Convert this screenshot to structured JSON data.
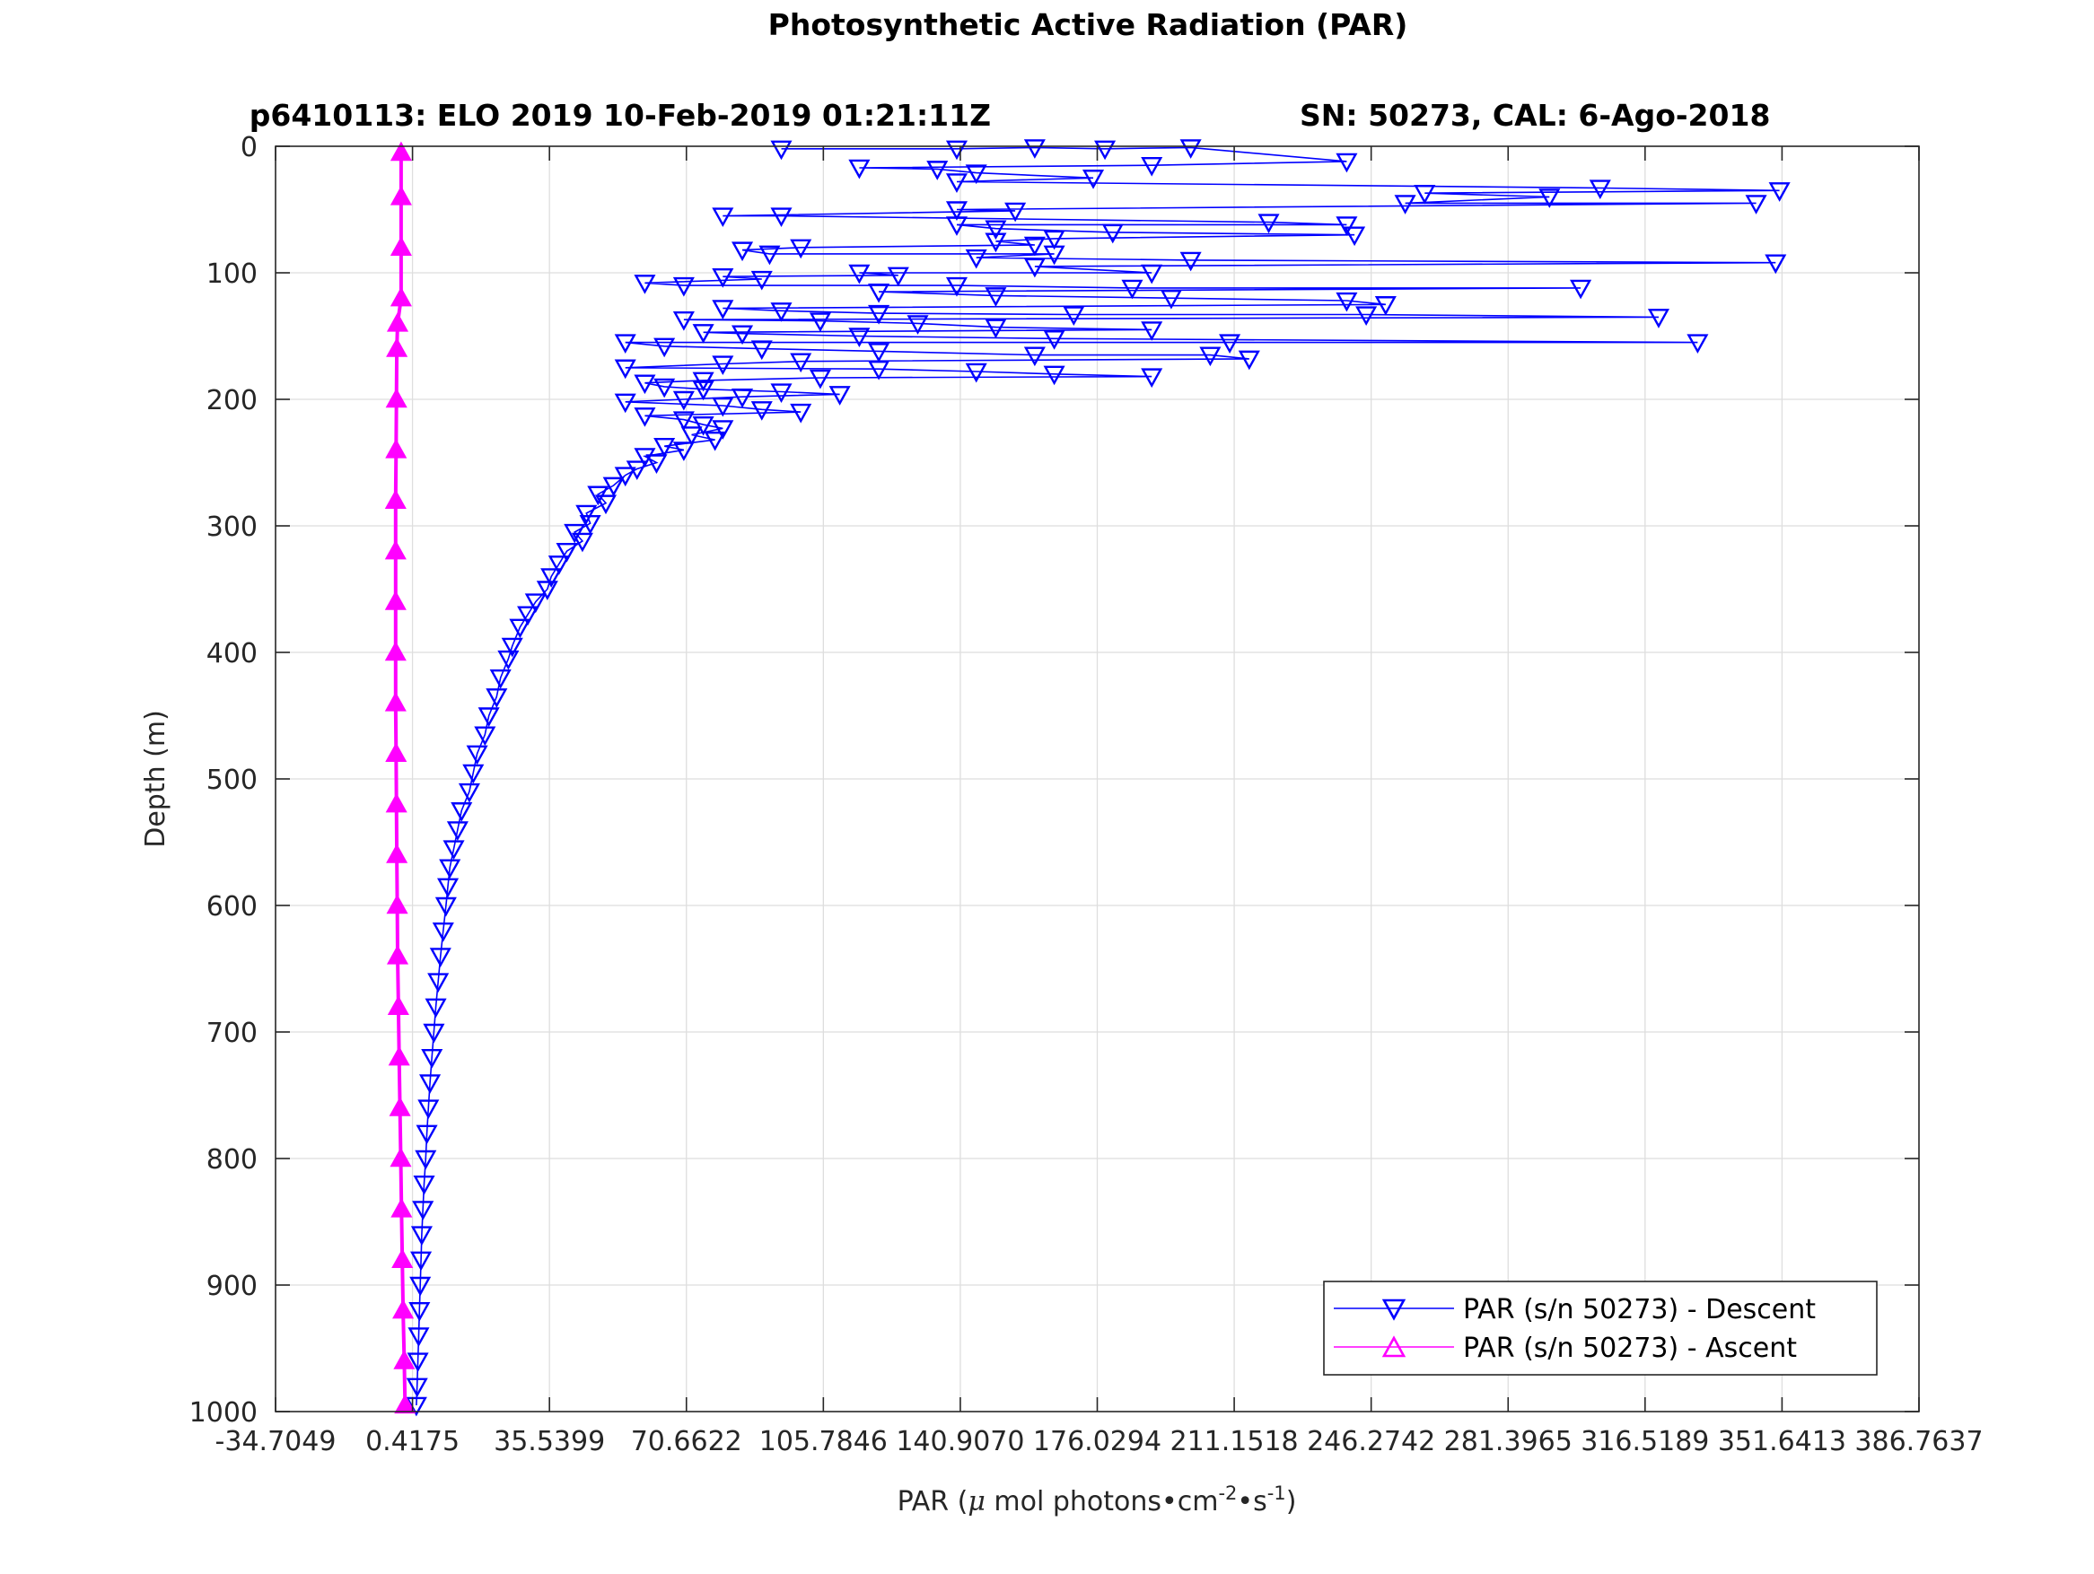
{
  "figure": {
    "title": "Photosynthetic Active Radiation (PAR)",
    "subtitle_left": "p6410113: ELO 2019 10-Feb-2019 01:21:11Z",
    "subtitle_right": "SN: 50273, CAL: 6-Ago-2018"
  },
  "chart_data": {
    "type": "line",
    "title": "Photosynthetic Active Radiation (PAR)",
    "xlabel": "PAR (μ mol photons•cm⁻²•s⁻¹)",
    "xlabel_parts": {
      "prefix": "PAR (",
      "mu": "μ",
      "middle": " mol photons•cm",
      "sup1": "-2",
      "dot": "•s",
      "sup2": "-1",
      "suffix": ")"
    },
    "ylabel": "Depth (m)",
    "xlim": [
      -34.7049,
      386.7637
    ],
    "ylim": [
      1000,
      0
    ],
    "y_reversed": true,
    "grid": true,
    "x_ticks": [
      -34.7049,
      0.4175,
      35.5399,
      70.6622,
      105.7846,
      140.907,
      176.0294,
      211.1518,
      246.2742,
      281.3965,
      316.5189,
      351.6413,
      386.7637
    ],
    "x_tick_labels": [
      "-34.7049",
      "0.4175",
      "35.5399",
      "70.6622",
      "105.7846",
      "140.9070",
      "176.0294",
      "211.1518",
      "246.2742",
      "281.3965",
      "316.5189",
      "351.6413",
      "386.7637"
    ],
    "y_ticks": [
      0,
      100,
      200,
      300,
      400,
      500,
      600,
      700,
      800,
      900,
      1000
    ],
    "y_tick_labels": [
      "0",
      "100",
      "200",
      "300",
      "400",
      "500",
      "600",
      "700",
      "800",
      "900",
      "1000"
    ],
    "legend_position": "bottom-right",
    "series": [
      {
        "name": "PAR (s/n 50273) - Descent",
        "color": "#0000ff",
        "marker": "triangle-down",
        "points": [
          [
            95,
            2
          ],
          [
            140,
            2
          ],
          [
            160,
            1
          ],
          [
            178,
            2
          ],
          [
            200,
            1
          ],
          [
            240,
            12
          ],
          [
            190,
            15
          ],
          [
            115,
            17
          ],
          [
            135,
            18
          ],
          [
            145,
            21
          ],
          [
            175,
            25
          ],
          [
            140,
            28
          ],
          [
            305,
            33
          ],
          [
            351,
            35
          ],
          [
            260,
            37
          ],
          [
            292,
            40
          ],
          [
            255,
            45
          ],
          [
            345,
            45
          ],
          [
            140,
            50
          ],
          [
            155,
            51
          ],
          [
            80,
            55
          ],
          [
            95,
            55
          ],
          [
            220,
            60
          ],
          [
            240,
            62
          ],
          [
            140,
            62
          ],
          [
            150,
            65
          ],
          [
            180,
            68
          ],
          [
            242,
            70
          ],
          [
            165,
            73
          ],
          [
            150,
            75
          ],
          [
            160,
            78
          ],
          [
            100,
            80
          ],
          [
            85,
            82
          ],
          [
            92,
            85
          ],
          [
            165,
            85
          ],
          [
            145,
            88
          ],
          [
            200,
            90
          ],
          [
            350,
            92
          ],
          [
            160,
            95
          ],
          [
            190,
            100
          ],
          [
            115,
            100
          ],
          [
            125,
            102
          ],
          [
            80,
            103
          ],
          [
            90,
            105
          ],
          [
            60,
            108
          ],
          [
            70,
            110
          ],
          [
            140,
            110
          ],
          [
            185,
            112
          ],
          [
            300,
            112
          ],
          [
            120,
            115
          ],
          [
            150,
            118
          ],
          [
            195,
            120
          ],
          [
            240,
            122
          ],
          [
            250,
            125
          ],
          [
            80,
            128
          ],
          [
            95,
            130
          ],
          [
            120,
            132
          ],
          [
            170,
            133
          ],
          [
            245,
            133
          ],
          [
            320,
            135
          ],
          [
            70,
            137
          ],
          [
            105,
            138
          ],
          [
            130,
            140
          ],
          [
            150,
            143
          ],
          [
            190,
            145
          ],
          [
            75,
            147
          ],
          [
            85,
            148
          ],
          [
            115,
            150
          ],
          [
            165,
            152
          ],
          [
            330,
            155
          ],
          [
            210,
            155
          ],
          [
            55,
            155
          ],
          [
            65,
            158
          ],
          [
            90,
            160
          ],
          [
            120,
            162
          ],
          [
            160,
            165
          ],
          [
            205,
            165
          ],
          [
            215,
            168
          ],
          [
            100,
            170
          ],
          [
            80,
            172
          ],
          [
            55,
            175
          ],
          [
            120,
            176
          ],
          [
            145,
            178
          ],
          [
            165,
            180
          ],
          [
            190,
            182
          ],
          [
            105,
            183
          ],
          [
            75,
            185
          ],
          [
            60,
            187
          ],
          [
            65,
            190
          ],
          [
            75,
            192
          ],
          [
            95,
            194
          ],
          [
            110,
            196
          ],
          [
            85,
            198
          ],
          [
            70,
            200
          ],
          [
            55,
            202
          ],
          [
            80,
            205
          ],
          [
            90,
            208
          ],
          [
            100,
            210
          ],
          [
            60,
            213
          ],
          [
            70,
            216
          ],
          [
            75,
            220
          ],
          [
            80,
            223
          ],
          [
            72,
            228
          ],
          [
            78,
            232
          ],
          [
            65,
            237
          ],
          [
            70,
            240
          ],
          [
            60,
            245
          ],
          [
            63,
            250
          ],
          [
            58,
            255
          ],
          [
            55,
            260
          ],
          [
            52,
            268
          ],
          [
            48,
            275
          ],
          [
            50,
            282
          ],
          [
            45,
            290
          ],
          [
            46,
            298
          ],
          [
            42,
            305
          ],
          [
            44,
            312
          ],
          [
            40,
            320
          ],
          [
            38,
            330
          ],
          [
            36,
            340
          ],
          [
            35,
            350
          ],
          [
            32,
            360
          ],
          [
            30,
            370
          ],
          [
            28,
            380
          ],
          [
            26,
            395
          ],
          [
            25,
            405
          ],
          [
            23,
            420
          ],
          [
            22,
            435
          ],
          [
            20,
            450
          ],
          [
            19,
            465
          ],
          [
            17,
            480
          ],
          [
            16,
            495
          ],
          [
            15,
            510
          ],
          [
            13,
            525
          ],
          [
            12,
            540
          ],
          [
            11,
            555
          ],
          [
            10,
            570
          ],
          [
            9.5,
            585
          ],
          [
            9,
            600
          ],
          [
            8.3,
            620
          ],
          [
            7.6,
            640
          ],
          [
            7,
            660
          ],
          [
            6.4,
            680
          ],
          [
            5.9,
            700
          ],
          [
            5.4,
            720
          ],
          [
            4.9,
            740
          ],
          [
            4.5,
            760
          ],
          [
            4.1,
            780
          ],
          [
            3.8,
            800
          ],
          [
            3.4,
            820
          ],
          [
            3.1,
            840
          ],
          [
            2.8,
            860
          ],
          [
            2.6,
            880
          ],
          [
            2.4,
            900
          ],
          [
            2.2,
            920
          ],
          [
            2.0,
            940
          ],
          [
            1.8,
            960
          ],
          [
            1.6,
            980
          ],
          [
            1.4,
            995
          ]
        ]
      },
      {
        "name": "PAR (s/n 50273) - Ascent",
        "color": "#ff00ff",
        "marker": "triangle-up",
        "points": [
          [
            -1.5,
            995
          ],
          [
            -1.7,
            960
          ],
          [
            -2.0,
            920
          ],
          [
            -2.2,
            880
          ],
          [
            -2.4,
            840
          ],
          [
            -2.6,
            800
          ],
          [
            -2.8,
            760
          ],
          [
            -3.0,
            720
          ],
          [
            -3.2,
            680
          ],
          [
            -3.4,
            640
          ],
          [
            -3.5,
            600
          ],
          [
            -3.6,
            560
          ],
          [
            -3.7,
            520
          ],
          [
            -3.8,
            480
          ],
          [
            -3.9,
            440
          ],
          [
            -3.9,
            400
          ],
          [
            -3.9,
            360
          ],
          [
            -3.9,
            320
          ],
          [
            -3.9,
            280
          ],
          [
            -3.8,
            240
          ],
          [
            -3.7,
            200
          ],
          [
            -3.6,
            160
          ],
          [
            -3.4,
            140
          ],
          [
            -2.5,
            120
          ],
          [
            -2.5,
            80
          ],
          [
            -2.5,
            40
          ],
          [
            -2.5,
            5
          ]
        ]
      }
    ]
  }
}
